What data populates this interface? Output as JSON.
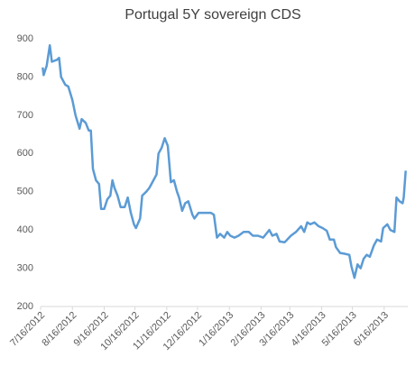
{
  "chart_data": {
    "type": "line",
    "title": "Portugal 5Y sovereign CDS",
    "x": [
      "7/18/2012",
      "7/19/2012",
      "7/22/2012",
      "7/25/2012",
      "7/27/2012",
      "8/1/2012",
      "8/3/2012",
      "8/5/2012",
      "8/9/2012",
      "8/12/2012",
      "8/16/2012",
      "8/19/2012",
      "8/23/2012",
      "8/25/2012",
      "8/29/2012",
      "9/1/2012",
      "9/3/2012",
      "9/5/2012",
      "9/8/2012",
      "9/11/2012",
      "9/13/2012",
      "9/16/2012",
      "9/19/2012",
      "9/22/2012",
      "9/24/2012",
      "9/26/2012",
      "9/29/2012",
      "10/2/2012",
      "10/6/2012",
      "10/9/2012",
      "10/12/2012",
      "10/15/2012",
      "10/17/2012",
      "10/21/2012",
      "10/23/2012",
      "10/27/2012",
      "10/30/2012",
      "11/3/2012",
      "11/6/2012",
      "11/8/2012",
      "11/11/2012",
      "11/14/2012",
      "11/17/2012",
      "11/20/2012",
      "11/23/2012",
      "11/26/2012",
      "11/28/2012",
      "12/1/2012",
      "12/4/2012",
      "12/7/2012",
      "12/11/2012",
      "12/13/2012",
      "12/17/2012",
      "12/20/2012",
      "12/26/2012",
      "12/29/2012",
      "1/1/2013",
      "1/4/2013",
      "1/7/2013",
      "1/11/2013",
      "1/14/2013",
      "1/17/2013",
      "1/21/2013",
      "1/25/2013",
      "1/30/2013",
      "2/4/2013",
      "2/8/2013",
      "2/13/2013",
      "2/18/2013",
      "2/24/2013",
      "2/27/2013",
      "3/3/2013",
      "3/6/2013",
      "3/11/2013",
      "3/17/2013",
      "3/22/2013",
      "3/27/2013",
      "3/30/2013",
      "4/2/2013",
      "4/5/2013",
      "4/9/2013",
      "4/13/2013",
      "4/17/2013",
      "4/21/2013",
      "4/24/2013",
      "4/28/2013",
      "4/30/2013",
      "5/4/2013",
      "5/8/2013",
      "5/13/2013",
      "5/15/2013",
      "5/18/2013",
      "5/21/2013",
      "5/24/2013",
      "5/27/2013",
      "5/30/2013",
      "6/2/2013",
      "6/6/2013",
      "6/9/2013",
      "6/13/2013",
      "6/15/2013",
      "6/19/2013",
      "6/22/2013",
      "6/26/2013",
      "6/28/2013",
      "7/1/2013",
      "7/4/2013",
      "7/5/2013",
      "7/7/2013"
    ],
    "series": [
      {
        "color": "#5b9bd5",
        "values": [
          825,
          805,
          830,
          883,
          840,
          845,
          850,
          800,
          780,
          775,
          740,
          700,
          665,
          690,
          680,
          660,
          660,
          560,
          530,
          520,
          455,
          455,
          480,
          490,
          530,
          510,
          490,
          460,
          460,
          485,
          445,
          415,
          405,
          430,
          490,
          500,
          510,
          530,
          545,
          600,
          615,
          640,
          620,
          525,
          530,
          500,
          485,
          450,
          470,
          475,
          440,
          430,
          445,
          445,
          445,
          445,
          440,
          380,
          390,
          380,
          395,
          385,
          380,
          385,
          395,
          395,
          385,
          385,
          380,
          400,
          385,
          390,
          370,
          368,
          385,
          395,
          410,
          395,
          420,
          415,
          420,
          410,
          405,
          398,
          375,
          375,
          355,
          340,
          338,
          335,
          305,
          275,
          310,
          300,
          325,
          335,
          330,
          360,
          375,
          370,
          405,
          415,
          400,
          395,
          485,
          475,
          470,
          485,
          555
        ]
      }
    ],
    "xlim": [
      "7/16/2012",
      "7/9/2013"
    ],
    "xticks": [
      "7/16/2012",
      "8/16/2012",
      "9/16/2012",
      "10/16/2012",
      "11/16/2012",
      "12/16/2012",
      "1/16/2013",
      "2/16/2013",
      "3/16/2013",
      "4/16/2013",
      "5/16/2013",
      "6/16/2013"
    ],
    "ylim": [
      200,
      900
    ],
    "yticks": [
      200,
      300,
      400,
      500,
      600,
      700,
      800,
      900
    ],
    "grid": false
  }
}
